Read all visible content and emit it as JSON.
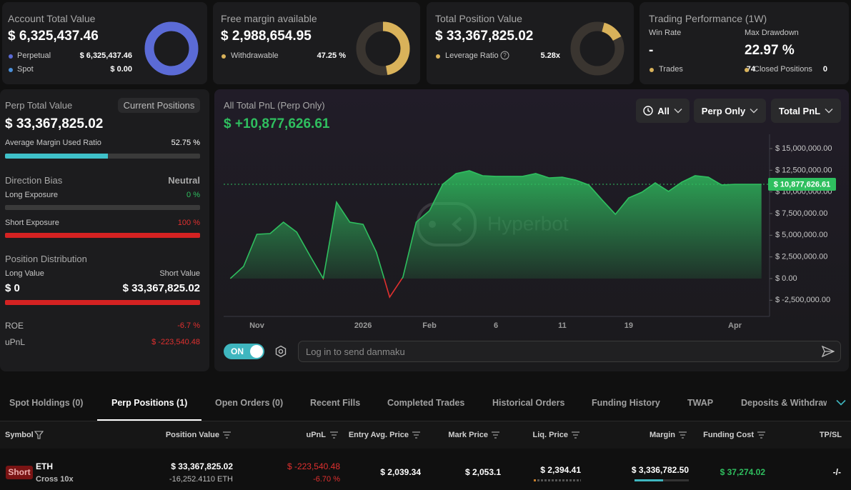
{
  "account_total": {
    "title": "Account Total Value",
    "value": "$ 6,325,437.46",
    "perpetual": {
      "label": "Perpetual",
      "amount": {
        "value": 6325437.46,
        "label": "$ 6,325,437.46"
      }
    },
    "spot": {
      "label": "Spot",
      "amount": {
        "value": 0,
        "label": "$ 0.00"
      }
    }
  },
  "free_margin": {
    "title": "Free margin available",
    "value": "$ 2,988,654.95",
    "withdrawable": {
      "label": "Withdrawable",
      "ratio": {
        "value": 47.25,
        "label": "47.25 %"
      }
    }
  },
  "position_value": {
    "title": "Total Position Value",
    "value": "$ 33,367,825.02",
    "leverage": {
      "label": "Leverage Ratio",
      "value": "5.28x"
    }
  },
  "performance": {
    "title": "Trading Performance (1W)",
    "win_rate": {
      "label": "Win Rate",
      "value": "-"
    },
    "max_drawdown": {
      "label": "Max Drawdown",
      "value": "22.97 %"
    },
    "trades": {
      "label": "Trades",
      "value": 74
    },
    "closed_positions": {
      "label": "Closed Positions",
      "value": 0
    }
  },
  "perp_panel": {
    "title": "Perp Total Value",
    "button": "Current Positions",
    "value": "$ 33,367,825.02",
    "margin_ratio": {
      "label": "Average Margin Used Ratio",
      "ratio": {
        "value": 52.75,
        "label": "52.75 %"
      }
    },
    "direction_bias": {
      "label": "Direction Bias",
      "value": "Neutral"
    },
    "long_exposure": {
      "label": "Long Exposure",
      "ratio": {
        "value": 0,
        "label": "0 %"
      }
    },
    "short_exposure": {
      "label": "Short Exposure",
      "ratio": {
        "value": 100,
        "label": "100 %"
      }
    },
    "distribution": {
      "title": "Position Distribution",
      "long": {
        "label": "Long Value",
        "amount": {
          "value": 0,
          "label": "$ 0"
        }
      },
      "short": {
        "label": "Short Value",
        "amount": {
          "value": 33367825.02,
          "label": "$ 33,367,825.02"
        }
      }
    },
    "roe": {
      "label": "ROE",
      "value": "-6.7 %"
    },
    "upnl": {
      "label": "uPnL",
      "value": "$ -223,540.48"
    }
  },
  "pnl_chart": {
    "type": "area",
    "title": "All Total PnL (Perp Only)",
    "headline": "$ +10,877,626.61",
    "watermark": "Hyperbot",
    "filters": [
      "All",
      "Perp Only",
      "Total PnL"
    ],
    "categories": [
      null,
      null,
      "Nov",
      null,
      null,
      null,
      null,
      null,
      null,
      null,
      "2026",
      null,
      null,
      null,
      null,
      "Feb",
      null,
      null,
      null,
      null,
      "6",
      null,
      null,
      null,
      null,
      "11",
      null,
      null,
      null,
      null,
      "19",
      null,
      null,
      null,
      null,
      null,
      null,
      null,
      "Apr",
      null,
      null
    ],
    "values": [
      0,
      1400000,
      5110000,
      5190000,
      6510000,
      5360000,
      2640000,
      0,
      8820000,
      6510000,
      6260000,
      3050000,
      -2140000,
      160000,
      6510000,
      7830000,
      10880000,
      12120000,
      12450000,
      11870000,
      11790000,
      11790000,
      11790000,
      12120000,
      11620000,
      11700000,
      11370000,
      10800000,
      9070000,
      7420000,
      9310000,
      9970000,
      11050000,
      10060000,
      11130000,
      11870000,
      11700000,
      10800000,
      10880000,
      10880000,
      10877626.61
    ],
    "color": "#2fbf5f",
    "negative_color": "#e0302f",
    "ylim": [
      -4370000,
      16650000
    ],
    "yticks": [
      {
        "value": -2500000,
        "label": "$ -2,500,000.00"
      },
      {
        "value": 0,
        "label": "$ 0.00"
      },
      {
        "value": 2500000,
        "label": "$ 2,500,000.00"
      },
      {
        "value": 5000000,
        "label": "$ 5,000,000.00"
      },
      {
        "value": 7500000,
        "label": "$ 7,500,000.00"
      },
      {
        "value": 10000000,
        "label": "$ 10,000,000.00"
      },
      {
        "value": 12500000,
        "label": "$ 12,500,000.00"
      },
      {
        "value": 15000000,
        "label": "$ 15,000,000.00"
      }
    ],
    "current": {
      "value": 10877626.61,
      "label": "$ 10,877,626.61"
    },
    "toggle": "ON",
    "input_placeholder": "Log in to send danmaku"
  },
  "tabs": [
    "Spot Holdings (0)",
    "Perp Positions (1)",
    "Open Orders (0)",
    "Recent Fills",
    "Completed Trades",
    "Historical Orders",
    "Funding History",
    "TWAP",
    "Deposits & Withdraw"
  ],
  "table": {
    "headers": [
      "Symbol",
      "Position Value",
      "uPnL",
      "Entry Avg. Price",
      "Mark Price",
      "Liq. Price",
      "Margin",
      "Funding Cost",
      "TP/SL"
    ],
    "rows": [
      {
        "side": "Short",
        "symbol": "ETH",
        "mode": "Cross 10x",
        "position_value": "$ 33,367,825.02",
        "size": "-16,252.4110 ETH",
        "upnl": "$ -223,540.48",
        "upnl_pct": "-6.70 %",
        "entry": "$ 2,039.34",
        "mark": "$ 2,053.1",
        "liq": "$ 2,394.41",
        "margin": "$ 3,336,782.50",
        "funding": "$ 37,274.02",
        "tpsl": "-/-"
      }
    ]
  }
}
